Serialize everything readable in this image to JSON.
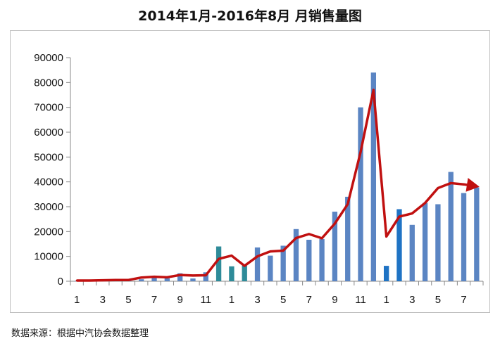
{
  "chart_data": {
    "type": "bar",
    "title": "2014年1月-2016年8月 月销售量图",
    "x_tick_labels": [
      "1",
      "",
      "3",
      "",
      "5",
      "",
      "7",
      "",
      "9",
      "",
      "11",
      "",
      "1",
      "",
      "3",
      "",
      "5",
      "",
      "7",
      "",
      "9",
      "",
      "11",
      "",
      "1",
      "",
      "3",
      "",
      "5",
      "",
      "7",
      ""
    ],
    "y_ticks": [
      "0",
      "10000",
      "20000",
      "30000",
      "40000",
      "50000",
      "60000",
      "70000",
      "80000",
      "90000"
    ],
    "ylim": [
      0,
      90000
    ],
    "grid": false,
    "legend": "none",
    "series": [
      {
        "kind": "bar",
        "values": [
          100,
          300,
          200,
          500,
          400,
          800,
          1400,
          1200,
          3200,
          1100,
          3600,
          14000,
          6000,
          6300,
          13600,
          10300,
          14300,
          21000,
          16700,
          17000,
          28000,
          34000,
          70000,
          84000,
          6200,
          29000,
          22700,
          31500,
          31000,
          44000,
          35500,
          37800
        ]
      },
      {
        "kind": "line",
        "values": [
          300,
          300,
          400,
          500,
          500,
          1500,
          1800,
          1600,
          2500,
          2300,
          2400,
          9000,
          10300,
          6200,
          10000,
          12000,
          12300,
          17400,
          19000,
          17300,
          23200,
          31000,
          52000,
          77000,
          18000,
          26000,
          27300,
          31500,
          37500,
          39500,
          39000,
          38200
        ]
      }
    ],
    "colors": {
      "bar": "#5b85c3",
      "bar_alt_teal": "#2e8b99",
      "bar_alt_blue": "#1f73c4",
      "line": "#c01010"
    }
  },
  "source_note": "数据来源：根据中汽协会数据整理"
}
